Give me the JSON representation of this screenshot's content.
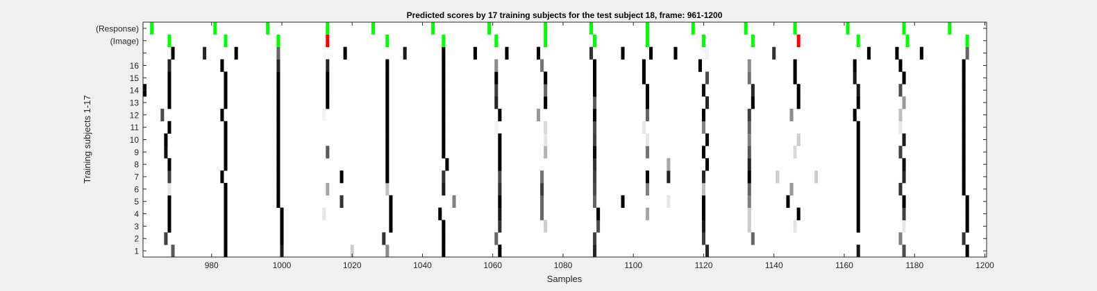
{
  "chart_data": {
    "type": "heatmap",
    "title": "Predicted scores by 17 training subjects for the test subject 18, frame: 961-1200",
    "xlabel": "Samples",
    "ylabel": "Training subjects 1-17",
    "xlim": [
      961,
      1200
    ],
    "x_ticks": [
      980,
      1000,
      1020,
      1040,
      1060,
      1080,
      1100,
      1120,
      1140,
      1160,
      1180,
      1200
    ],
    "rows": [
      "1",
      "2",
      "3",
      "4",
      "5",
      "6",
      "7",
      "8",
      "9",
      "10",
      "11",
      "12",
      "13",
      "14",
      "15",
      "16",
      "17",
      "(Image)",
      "(Response)"
    ],
    "y_tick_labels": [
      "1",
      "2",
      "3",
      "4",
      "5",
      "6",
      "7",
      "8",
      "9",
      "10",
      "11",
      "12",
      "13",
      "14",
      "15",
      "16",
      "",
      "(Image)",
      "(Response)"
    ],
    "colors": {
      "background": "#ffffff",
      "figure": "#f0f0f0",
      "correct": "#00ff00",
      "wrong": "#ff0000"
    },
    "subjects": [
      {
        "row": "1",
        "marks": [
          [
            969,
            0.65
          ],
          [
            984,
            1
          ],
          [
            1000,
            0.9
          ],
          [
            1020,
            0.2
          ],
          [
            1030,
            0.45
          ],
          [
            1046,
            1
          ],
          [
            1062,
            1
          ],
          [
            1089,
            0.85
          ],
          [
            1121,
            0.85
          ],
          [
            1164,
            0.9
          ],
          [
            1177,
            0.7
          ],
          [
            1195,
            1
          ]
        ]
      },
      {
        "row": "2",
        "marks": [
          [
            967,
            0.75
          ],
          [
            984,
            1
          ],
          [
            1000,
            1
          ],
          [
            1029,
            0.8
          ],
          [
            1046,
            1
          ],
          [
            1061,
            0.6
          ],
          [
            1089,
            0.75
          ],
          [
            1120,
            0.75
          ],
          [
            1134,
            0.6
          ],
          [
            1176,
            0.5
          ],
          [
            1194,
            0.8
          ]
        ]
      },
      {
        "row": "3",
        "marks": [
          [
            968,
            1
          ],
          [
            984,
            1
          ],
          [
            1000,
            1
          ],
          [
            1031,
            1
          ],
          [
            1046,
            1
          ],
          [
            1062,
            0.8
          ],
          [
            1075,
            0.2
          ],
          [
            1090,
            0.7
          ],
          [
            1120,
            0.9
          ],
          [
            1133,
            0.2
          ],
          [
            1146,
            0.1
          ],
          [
            1164,
            1
          ],
          [
            1177,
            0.1
          ],
          [
            1195,
            1
          ]
        ]
      },
      {
        "row": "4",
        "marks": [
          [
            968,
            1
          ],
          [
            984,
            1
          ],
          [
            1000,
            1
          ],
          [
            1012,
            0.1
          ],
          [
            1031,
            1
          ],
          [
            1045,
            1
          ],
          [
            1062,
            0.9
          ],
          [
            1074,
            0.6
          ],
          [
            1090,
            1
          ],
          [
            1104,
            0.35
          ],
          [
            1120,
            1
          ],
          [
            1133,
            0.2
          ],
          [
            1147,
            1
          ],
          [
            1164,
            1
          ],
          [
            1177,
            0.75
          ],
          [
            1195,
            1
          ]
        ]
      },
      {
        "row": "5",
        "marks": [
          [
            968,
            1
          ],
          [
            984,
            1
          ],
          [
            999,
            1
          ],
          [
            1017,
            0.8
          ],
          [
            1031,
            1
          ],
          [
            1049,
            0.5
          ],
          [
            1062,
            1
          ],
          [
            1074,
            0.6
          ],
          [
            1089,
            0.6
          ],
          [
            1097,
            1
          ],
          [
            1110,
            0.1
          ],
          [
            1120,
            1
          ],
          [
            1133,
            0.5
          ],
          [
            1144,
            1
          ],
          [
            1164,
            1
          ],
          [
            1177,
            1
          ],
          [
            1195,
            1
          ]
        ]
      },
      {
        "row": "6",
        "marks": [
          [
            968,
            0.1
          ],
          [
            984,
            1
          ],
          [
            999,
            1
          ],
          [
            1013,
            0.35
          ],
          [
            1030,
            0.25
          ],
          [
            1046,
            0.9
          ],
          [
            1062,
            0.8
          ],
          [
            1074,
            0.75
          ],
          [
            1089,
            0.7
          ],
          [
            1104,
            0.5
          ],
          [
            1120,
            0.25
          ],
          [
            1133,
            0.6
          ],
          [
            1145,
            0.4
          ],
          [
            1164,
            1
          ],
          [
            1176,
            0.8
          ],
          [
            1194,
            1
          ]
        ]
      },
      {
        "row": "7",
        "marks": [
          [
            968,
            0.75
          ],
          [
            983,
            1
          ],
          [
            999,
            1
          ],
          [
            1017,
            1
          ],
          [
            1030,
            1
          ],
          [
            1046,
            0.8
          ],
          [
            1062,
            0.7
          ],
          [
            1074,
            0.55
          ],
          [
            1089,
            0.75
          ],
          [
            1104,
            1
          ],
          [
            1110,
            0.85
          ],
          [
            1120,
            0.85
          ],
          [
            1133,
            1
          ],
          [
            1141,
            0.2
          ],
          [
            1152,
            0.2
          ],
          [
            1164,
            1
          ],
          [
            1177,
            0.85
          ],
          [
            1194,
            1
          ]
        ]
      },
      {
        "row": "8",
        "marks": [
          [
            968,
            1
          ],
          [
            984,
            1
          ],
          [
            999,
            1
          ],
          [
            1030,
            1
          ],
          [
            1047,
            1
          ],
          [
            1062,
            1
          ],
          [
            1089,
            0.8
          ],
          [
            1110,
            0.35
          ],
          [
            1121,
            1
          ],
          [
            1133,
            0.85
          ],
          [
            1164,
            1
          ],
          [
            1177,
            0.95
          ],
          [
            1194,
            1
          ]
        ]
      },
      {
        "row": "9",
        "marks": [
          [
            967,
            0.95
          ],
          [
            984,
            1
          ],
          [
            999,
            1
          ],
          [
            1013,
            0.65
          ],
          [
            1030,
            1
          ],
          [
            1046,
            1
          ],
          [
            1062,
            1
          ],
          [
            1075,
            0.3
          ],
          [
            1089,
            0.95
          ],
          [
            1104,
            0.55
          ],
          [
            1120,
            1
          ],
          [
            1133,
            0.65
          ],
          [
            1146,
            0.15
          ],
          [
            1164,
            1
          ],
          [
            1176,
            0.75
          ],
          [
            1194,
            1
          ]
        ]
      },
      {
        "row": "10",
        "marks": [
          [
            967,
            1
          ],
          [
            984,
            1
          ],
          [
            999,
            1
          ],
          [
            1030,
            1
          ],
          [
            1046,
            1
          ],
          [
            1062,
            1
          ],
          [
            1075,
            0.1
          ],
          [
            1089,
            0.75
          ],
          [
            1104,
            0.1
          ],
          [
            1121,
            0.95
          ],
          [
            1133,
            0.5
          ],
          [
            1147,
            0.2
          ],
          [
            1164,
            1
          ],
          [
            1177,
            0.9
          ],
          [
            1194,
            1
          ]
        ]
      },
      {
        "row": "11",
        "marks": [
          [
            968,
            1
          ],
          [
            984,
            1
          ],
          [
            999,
            1
          ],
          [
            1030,
            1
          ],
          [
            1046,
            1
          ],
          [
            1061,
            0.05
          ],
          [
            1075,
            0.15
          ],
          [
            1089,
            0.7
          ],
          [
            1103,
            0.1
          ],
          [
            1120,
            0.5
          ],
          [
            1133,
            0.6
          ],
          [
            1164,
            1
          ],
          [
            1176,
            0.1
          ],
          [
            1194,
            1
          ]
        ]
      },
      {
        "row": "12",
        "marks": [
          [
            966,
            0.7
          ],
          [
            983,
            1
          ],
          [
            999,
            1
          ],
          [
            1012,
            0.05
          ],
          [
            1030,
            1
          ],
          [
            1046,
            1
          ],
          [
            1062,
            1
          ],
          [
            1073,
            0.4
          ],
          [
            1089,
            1
          ],
          [
            1104,
            0.6
          ],
          [
            1120,
            1
          ],
          [
            1133,
            0.75
          ],
          [
            1145,
            0.45
          ],
          [
            1163,
            1
          ],
          [
            1176,
            0.25
          ],
          [
            1194,
            1
          ]
        ]
      },
      {
        "row": "13",
        "marks": [
          [
            968,
            1
          ],
          [
            984,
            1
          ],
          [
            999,
            1
          ],
          [
            1013,
            1
          ],
          [
            1030,
            1
          ],
          [
            1046,
            1
          ],
          [
            1061,
            0.85
          ],
          [
            1075,
            1
          ],
          [
            1089,
            0.65
          ],
          [
            1104,
            1
          ],
          [
            1121,
            0.85
          ],
          [
            1134,
            1
          ],
          [
            1147,
            1
          ],
          [
            1164,
            1
          ],
          [
            1177,
            0.4
          ],
          [
            1194,
            1
          ]
        ]
      },
      {
        "row": "14",
        "marks": [
          [
            961,
            1
          ],
          [
            968,
            1
          ],
          [
            984,
            1
          ],
          [
            999,
            1
          ],
          [
            1013,
            1
          ],
          [
            1030,
            1
          ],
          [
            1046,
            1
          ],
          [
            1061,
            0.75
          ],
          [
            1075,
            0.6
          ],
          [
            1089,
            1
          ],
          [
            1104,
            1
          ],
          [
            1120,
            0.95
          ],
          [
            1134,
            0.85
          ],
          [
            1147,
            1
          ],
          [
            1164,
            0.9
          ],
          [
            1176,
            0.7
          ],
          [
            1194,
            1
          ]
        ]
      },
      {
        "row": "15",
        "marks": [
          [
            968,
            1
          ],
          [
            984,
            1
          ],
          [
            999,
            1
          ],
          [
            1013,
            1
          ],
          [
            1030,
            1
          ],
          [
            1046,
            1
          ],
          [
            1061,
            1
          ],
          [
            1075,
            1
          ],
          [
            1089,
            1
          ],
          [
            1103,
            1
          ],
          [
            1121,
            0.7
          ],
          [
            1133,
            0.55
          ],
          [
            1146,
            1
          ],
          [
            1163,
            0.9
          ],
          [
            1177,
            1
          ],
          [
            1194,
            1
          ]
        ]
      },
      {
        "row": "16",
        "marks": [
          [
            968,
            0.85
          ],
          [
            983,
            1
          ],
          [
            999,
            0.85
          ],
          [
            1013,
            0.85
          ],
          [
            1030,
            1
          ],
          [
            1046,
            1
          ],
          [
            1061,
            0.45
          ],
          [
            1074,
            0.55
          ],
          [
            1089,
            1
          ],
          [
            1103,
            1
          ],
          [
            1119,
            1
          ],
          [
            1133,
            0.45
          ],
          [
            1146,
            1
          ],
          [
            1163,
            1
          ],
          [
            1176,
            1
          ],
          [
            1194,
            1
          ]
        ]
      },
      {
        "row": "17",
        "marks": [
          [
            969,
            1
          ],
          [
            978,
            0.85
          ],
          [
            987,
            1
          ],
          [
            999,
            0.6
          ],
          [
            1018,
            1
          ],
          [
            1035,
            0.9
          ],
          [
            1046,
            1
          ],
          [
            1055,
            1
          ],
          [
            1064,
            1
          ],
          [
            1073,
            1
          ],
          [
            1088,
            0.8
          ],
          [
            1097,
            1
          ],
          [
            1105,
            1
          ],
          [
            1112,
            1
          ],
          [
            1121,
            0.05
          ],
          [
            1140,
            0.8
          ],
          [
            1167,
            1
          ],
          [
            1175,
            1
          ],
          [
            1182,
            1
          ],
          [
            1195,
            0.6
          ]
        ]
      }
    ],
    "image_events": [
      {
        "x": 968,
        "status": "correct"
      },
      {
        "x": 984,
        "status": "correct"
      },
      {
        "x": 999,
        "status": "correct"
      },
      {
        "x": 1013,
        "status": "wrong"
      },
      {
        "x": 1030,
        "status": "correct"
      },
      {
        "x": 1046,
        "status": "correct"
      },
      {
        "x": 1061,
        "status": "correct"
      },
      {
        "x": 1075,
        "status": "correct"
      },
      {
        "x": 1089,
        "status": "correct"
      },
      {
        "x": 1104,
        "status": "correct"
      },
      {
        "x": 1120,
        "status": "correct"
      },
      {
        "x": 1134,
        "status": "correct"
      },
      {
        "x": 1147,
        "status": "wrong"
      },
      {
        "x": 1164,
        "status": "correct"
      },
      {
        "x": 1178,
        "status": "correct"
      },
      {
        "x": 1195,
        "status": "correct"
      }
    ],
    "response_events": [
      963,
      981,
      996,
      1013,
      1026,
      1043,
      1059,
      1075,
      1088,
      1104,
      1117,
      1132,
      1146,
      1161,
      1177,
      1190
    ]
  }
}
